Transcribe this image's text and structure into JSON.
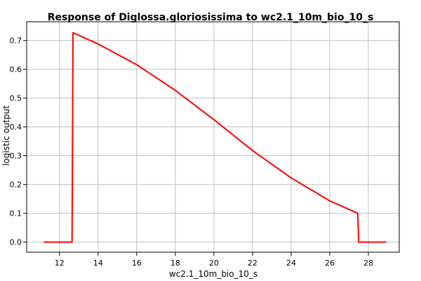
{
  "chart_data": {
    "type": "line",
    "title": "Response of Diglossa.gloriosissima to wc2.1_10m_bio_10_s",
    "xlabel": "wc2.1_10m_bio_10_s",
    "ylabel": "logistic output",
    "xlim": [
      10.3,
      29.6
    ],
    "ylim": [
      -0.035,
      0.765
    ],
    "x_ticks": [
      12,
      14,
      16,
      18,
      20,
      22,
      24,
      26,
      28
    ],
    "y_ticks": [
      0.0,
      0.1,
      0.2,
      0.3,
      0.4,
      0.5,
      0.6,
      0.7
    ],
    "y_tick_labels": [
      "0.0",
      "0.1",
      "0.2",
      "0.3",
      "0.4",
      "0.5",
      "0.6",
      "0.7"
    ],
    "grid": true,
    "series": [
      {
        "color": "#ff0000",
        "x": [
          11.2,
          12.65,
          12.7,
          14.0,
          16.0,
          18.0,
          20.0,
          22.0,
          24.0,
          26.0,
          27.45,
          27.5,
          28.9
        ],
        "y": [
          0.0,
          0.0,
          0.727,
          0.688,
          0.616,
          0.527,
          0.425,
          0.318,
          0.223,
          0.143,
          0.1,
          0.0,
          0.0
        ]
      }
    ]
  }
}
